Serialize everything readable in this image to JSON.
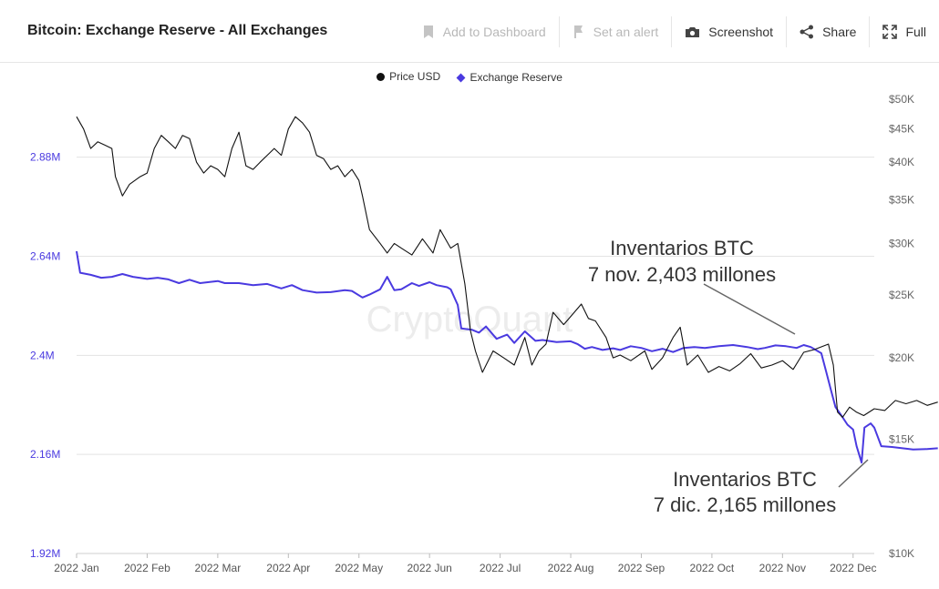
{
  "header": {
    "title": "Bitcoin: Exchange Reserve - All Exchanges",
    "actions": {
      "dashboard": "Add to Dashboard",
      "alert": "Set an alert",
      "screenshot": "Screenshot",
      "share": "Share",
      "full": "Full"
    }
  },
  "watermark": "CryptoQuant",
  "chart_data": {
    "type": "line",
    "legend": [
      "Price USD",
      "Exchange Reserve"
    ],
    "colors": {
      "price": "#111111",
      "reserve": "#4a3ae0"
    },
    "x_labels": [
      "2022 Jan",
      "2022 Feb",
      "2022 Mar",
      "2022 Apr",
      "2022 May",
      "2022 Jun",
      "2022 Jul",
      "2022 Aug",
      "2022 Sep",
      "2022 Oct",
      "2022 Nov",
      "2022 Dec"
    ],
    "left_axis": {
      "labels": [
        "2.88M",
        "2.64M",
        "2.4M",
        "2.16M",
        "1.92M"
      ],
      "ticks": [
        2880000,
        2640000,
        2400000,
        2160000,
        1920000
      ],
      "range": [
        1920000,
        3060000
      ]
    },
    "right_axis": {
      "labels": [
        "$50K",
        "$45K",
        "$40K",
        "$35K",
        "$30K",
        "$25K",
        "$20K",
        "$15K",
        "$10K"
      ],
      "ticks": [
        50000,
        45000,
        40000,
        35000,
        30000,
        25000,
        20000,
        15000,
        10000
      ],
      "scale": "log"
    },
    "series": [
      {
        "name": "Exchange Reserve",
        "axis": "left",
        "points": [
          [
            0,
            2652000
          ],
          [
            0.05,
            2600000
          ],
          [
            0.2,
            2595000
          ],
          [
            0.35,
            2588000
          ],
          [
            0.5,
            2590000
          ],
          [
            0.65,
            2597000
          ],
          [
            0.8,
            2590000
          ],
          [
            1,
            2585000
          ],
          [
            1.15,
            2588000
          ],
          [
            1.3,
            2584000
          ],
          [
            1.45,
            2575000
          ],
          [
            1.6,
            2583000
          ],
          [
            1.75,
            2575000
          ],
          [
            1.9,
            2578000
          ],
          [
            2,
            2580000
          ],
          [
            2.1,
            2575000
          ],
          [
            2.3,
            2575000
          ],
          [
            2.5,
            2570000
          ],
          [
            2.7,
            2573000
          ],
          [
            2.9,
            2562000
          ],
          [
            3.05,
            2570000
          ],
          [
            3.2,
            2558000
          ],
          [
            3.4,
            2552000
          ],
          [
            3.6,
            2553000
          ],
          [
            3.8,
            2558000
          ],
          [
            3.9,
            2556000
          ],
          [
            4.05,
            2540000
          ],
          [
            4.15,
            2547000
          ],
          [
            4.3,
            2560000
          ],
          [
            4.4,
            2590000
          ],
          [
            4.5,
            2558000
          ],
          [
            4.6,
            2560000
          ],
          [
            4.75,
            2575000
          ],
          [
            4.85,
            2568000
          ],
          [
            5.0,
            2577000
          ],
          [
            5.1,
            2570000
          ],
          [
            5.25,
            2565000
          ],
          [
            5.3,
            2560000
          ],
          [
            5.4,
            2522000
          ],
          [
            5.45,
            2465000
          ],
          [
            5.6,
            2462000
          ],
          [
            5.7,
            2455000
          ],
          [
            5.8,
            2470000
          ],
          [
            5.95,
            2440000
          ],
          [
            6.1,
            2450000
          ],
          [
            6.2,
            2430000
          ],
          [
            6.35,
            2458000
          ],
          [
            6.5,
            2435000
          ],
          [
            6.6,
            2437000
          ],
          [
            6.8,
            2432000
          ],
          [
            7.0,
            2434000
          ],
          [
            7.1,
            2427000
          ],
          [
            7.2,
            2416000
          ],
          [
            7.3,
            2420000
          ],
          [
            7.45,
            2413000
          ],
          [
            7.6,
            2417000
          ],
          [
            7.7,
            2413000
          ],
          [
            7.85,
            2422000
          ],
          [
            8.0,
            2418000
          ],
          [
            8.15,
            2410000
          ],
          [
            8.3,
            2416000
          ],
          [
            8.45,
            2408000
          ],
          [
            8.6,
            2418000
          ],
          [
            8.75,
            2420000
          ],
          [
            8.9,
            2418000
          ],
          [
            9.1,
            2422000
          ],
          [
            9.3,
            2425000
          ],
          [
            9.5,
            2420000
          ],
          [
            9.65,
            2415000
          ],
          [
            9.75,
            2418000
          ],
          [
            9.9,
            2424000
          ],
          [
            10.05,
            2422000
          ],
          [
            10.2,
            2418000
          ],
          [
            10.3,
            2425000
          ],
          [
            10.4,
            2420000
          ],
          [
            10.55,
            2405000
          ],
          [
            10.62,
            2360000
          ],
          [
            10.68,
            2320000
          ],
          [
            10.75,
            2275000
          ],
          [
            10.85,
            2250000
          ],
          [
            10.92,
            2232000
          ],
          [
            11.0,
            2220000
          ],
          [
            11.05,
            2180000
          ],
          [
            11.12,
            2140000
          ],
          [
            11.16,
            2225000
          ],
          [
            11.25,
            2235000
          ],
          [
            11.3,
            2225000
          ],
          [
            11.4,
            2180000
          ],
          [
            11.55,
            2178000
          ],
          [
            11.7,
            2175000
          ],
          [
            11.85,
            2172000
          ],
          [
            12.05,
            2173000
          ],
          [
            12.2,
            2175000
          ]
        ]
      },
      {
        "name": "Price USD",
        "axis": "right",
        "points": [
          [
            0,
            47000
          ],
          [
            0.1,
            45000
          ],
          [
            0.2,
            42000
          ],
          [
            0.3,
            43000
          ],
          [
            0.4,
            42500
          ],
          [
            0.5,
            42000
          ],
          [
            0.55,
            38000
          ],
          [
            0.65,
            35500
          ],
          [
            0.75,
            37000
          ],
          [
            0.9,
            38000
          ],
          [
            1.0,
            38500
          ],
          [
            1.1,
            42000
          ],
          [
            1.2,
            44000
          ],
          [
            1.3,
            43000
          ],
          [
            1.4,
            42000
          ],
          [
            1.5,
            44000
          ],
          [
            1.6,
            43500
          ],
          [
            1.7,
            40000
          ],
          [
            1.8,
            38500
          ],
          [
            1.9,
            39500
          ],
          [
            2.0,
            39000
          ],
          [
            2.1,
            38000
          ],
          [
            2.2,
            42000
          ],
          [
            2.3,
            44500
          ],
          [
            2.4,
            39500
          ],
          [
            2.5,
            39000
          ],
          [
            2.6,
            40000
          ],
          [
            2.7,
            41000
          ],
          [
            2.8,
            42000
          ],
          [
            2.9,
            41000
          ],
          [
            3.0,
            45000
          ],
          [
            3.1,
            47000
          ],
          [
            3.2,
            46000
          ],
          [
            3.3,
            44500
          ],
          [
            3.4,
            41000
          ],
          [
            3.5,
            40500
          ],
          [
            3.6,
            39000
          ],
          [
            3.7,
            39500
          ],
          [
            3.8,
            38000
          ],
          [
            3.9,
            39000
          ],
          [
            4.0,
            37500
          ],
          [
            4.05,
            35500
          ],
          [
            4.15,
            31500
          ],
          [
            4.3,
            30000
          ],
          [
            4.4,
            29000
          ],
          [
            4.5,
            30000
          ],
          [
            4.6,
            29500
          ],
          [
            4.75,
            28800
          ],
          [
            4.9,
            30500
          ],
          [
            5.05,
            29000
          ],
          [
            5.15,
            31500
          ],
          [
            5.3,
            29500
          ],
          [
            5.4,
            30000
          ],
          [
            5.5,
            26000
          ],
          [
            5.58,
            22000
          ],
          [
            5.65,
            20500
          ],
          [
            5.75,
            19000
          ],
          [
            5.9,
            20500
          ],
          [
            6.05,
            20000
          ],
          [
            6.2,
            19500
          ],
          [
            6.35,
            21500
          ],
          [
            6.45,
            19500
          ],
          [
            6.55,
            20500
          ],
          [
            6.65,
            21000
          ],
          [
            6.75,
            23500
          ],
          [
            6.9,
            22500
          ],
          [
            7.05,
            23500
          ],
          [
            7.15,
            24200
          ],
          [
            7.25,
            23000
          ],
          [
            7.35,
            22800
          ],
          [
            7.5,
            21500
          ],
          [
            7.6,
            20000
          ],
          [
            7.7,
            20200
          ],
          [
            7.85,
            19800
          ],
          [
            8.05,
            20500
          ],
          [
            8.15,
            19200
          ],
          [
            8.3,
            20000
          ],
          [
            8.45,
            21500
          ],
          [
            8.55,
            22300
          ],
          [
            8.65,
            19500
          ],
          [
            8.8,
            20200
          ],
          [
            8.95,
            19000
          ],
          [
            9.1,
            19400
          ],
          [
            9.25,
            19100
          ],
          [
            9.4,
            19600
          ],
          [
            9.55,
            20300
          ],
          [
            9.7,
            19300
          ],
          [
            9.85,
            19500
          ],
          [
            10.0,
            19800
          ],
          [
            10.15,
            19200
          ],
          [
            10.3,
            20400
          ],
          [
            10.45,
            20600
          ],
          [
            10.55,
            20800
          ],
          [
            10.65,
            21000
          ],
          [
            10.72,
            19500
          ],
          [
            10.78,
            16500
          ],
          [
            10.85,
            16200
          ],
          [
            10.95,
            16800
          ],
          [
            11.05,
            16500
          ],
          [
            11.15,
            16300
          ],
          [
            11.3,
            16700
          ],
          [
            11.45,
            16600
          ],
          [
            11.6,
            17200
          ],
          [
            11.75,
            17000
          ],
          [
            11.9,
            17200
          ],
          [
            12.05,
            16900
          ],
          [
            12.2,
            17100
          ]
        ]
      }
    ],
    "annotations": [
      {
        "lines": [
          "Inventarios BTC",
          "7 nov. 2,403 millones"
        ]
      },
      {
        "lines": [
          "Inventarios BTC",
          "7 dic. 2,165 millones"
        ]
      }
    ]
  }
}
